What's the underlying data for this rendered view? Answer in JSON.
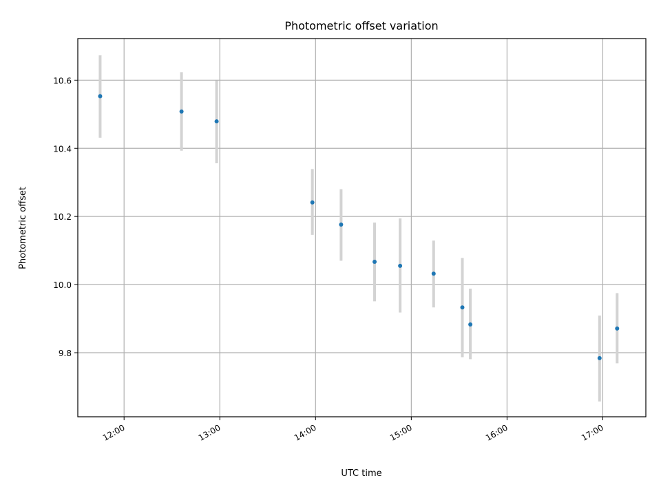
{
  "chart_data": {
    "type": "scatter",
    "title": "Photometric offset variation",
    "xlabel": "UTC time",
    "ylabel": "Photometric offset",
    "x_axis_type": "time",
    "xlim": [
      "11:31",
      "17:27"
    ],
    "ylim": [
      9.612,
      10.722
    ],
    "grid": true,
    "x_tick_labels": [
      "12:00",
      "13:00",
      "14:00",
      "15:00",
      "16:00",
      "17:00"
    ],
    "y_tick_labels": [
      "9.8",
      "10.0",
      "10.2",
      "10.4",
      "10.6"
    ],
    "y_ticks": [
      9.8,
      10.0,
      10.2,
      10.4,
      10.6
    ],
    "marker_color": "#1f77b4",
    "errorbar_color": "#d3d3d3",
    "points": [
      {
        "x": "11:45",
        "y": 10.553,
        "yerr_low": 10.431,
        "yerr_high": 10.673
      },
      {
        "x": "12:36",
        "y": 10.508,
        "yerr_low": 10.393,
        "yerr_high": 10.623
      },
      {
        "x": "12:58",
        "y": 10.479,
        "yerr_low": 10.356,
        "yerr_high": 10.599
      },
      {
        "x": "13:58",
        "y": 10.241,
        "yerr_low": 10.146,
        "yerr_high": 10.339
      },
      {
        "x": "14:16",
        "y": 10.176,
        "yerr_low": 10.07,
        "yerr_high": 10.28
      },
      {
        "x": "14:37",
        "y": 10.067,
        "yerr_low": 9.951,
        "yerr_high": 10.182
      },
      {
        "x": "14:53",
        "y": 10.055,
        "yerr_low": 9.918,
        "yerr_high": 10.194
      },
      {
        "x": "15:14",
        "y": 10.032,
        "yerr_low": 9.933,
        "yerr_high": 10.129
      },
      {
        "x": "15:32",
        "y": 9.933,
        "yerr_low": 9.787,
        "yerr_high": 10.078
      },
      {
        "x": "15:37",
        "y": 9.883,
        "yerr_low": 9.781,
        "yerr_high": 9.988
      },
      {
        "x": "16:58",
        "y": 9.784,
        "yerr_low": 9.657,
        "yerr_high": 9.909
      },
      {
        "x": "17:09",
        "y": 9.871,
        "yerr_low": 9.769,
        "yerr_high": 9.975
      }
    ]
  }
}
